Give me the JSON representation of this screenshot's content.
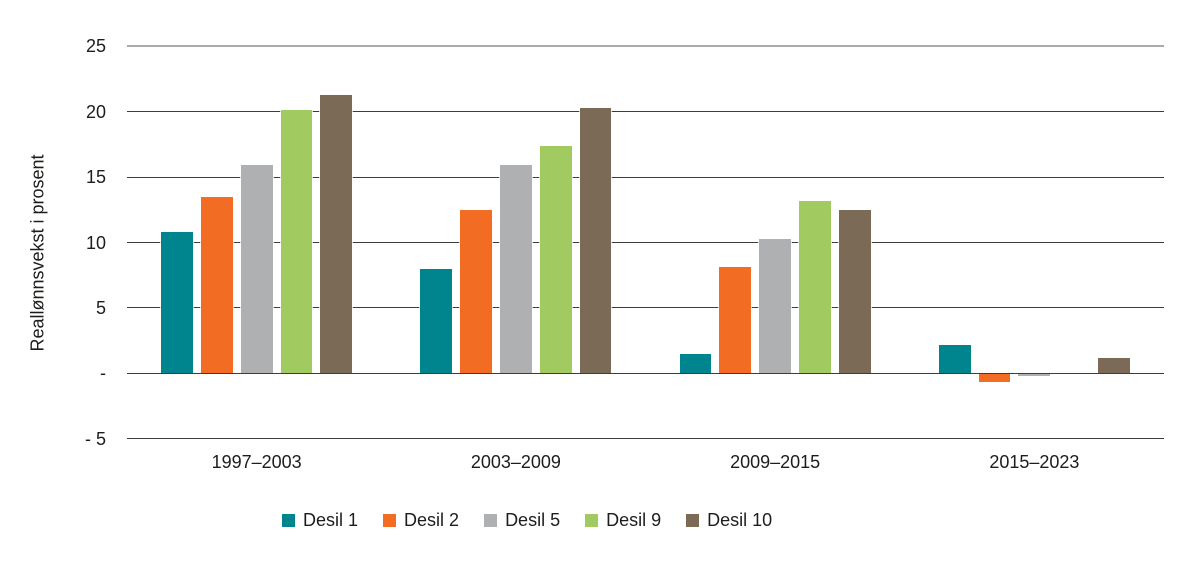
{
  "chart_data": {
    "type": "bar",
    "title": "",
    "ylabel": "Reallønnsvekst i prosent",
    "xlabel": "",
    "categories": [
      "1997–2003",
      "2003–2009",
      "2009–2015",
      "2015–2023"
    ],
    "series": [
      {
        "name": "Desil 1",
        "color": "#00858E",
        "values": [
          10.8,
          8.0,
          1.5,
          2.2
        ]
      },
      {
        "name": "Desil 2",
        "color": "#F26C23",
        "values": [
          13.5,
          12.5,
          8.1,
          -0.6
        ]
      },
      {
        "name": "Desil 5",
        "color": "#AFB0B1",
        "values": [
          15.9,
          15.9,
          10.3,
          -0.2
        ]
      },
      {
        "name": "Desil 9",
        "color": "#A1CA61",
        "values": [
          20.1,
          17.4,
          13.2,
          0
        ]
      },
      {
        "name": "Desil 10",
        "color": "#7A6A56",
        "values": [
          21.3,
          20.3,
          12.5,
          1.2
        ]
      }
    ],
    "ylim": [
      -5,
      25
    ],
    "yticks": [
      {
        "value": 25,
        "label": "25"
      },
      {
        "value": 20,
        "label": "20"
      },
      {
        "value": 15,
        "label": "15"
      },
      {
        "value": 10,
        "label": "10"
      },
      {
        "value": 5,
        "label": "5"
      },
      {
        "value": 0,
        "label": "-"
      },
      {
        "value": -5,
        "label": "- 5"
      }
    ],
    "grid": true,
    "legend_position": "bottom"
  },
  "colors": {
    "background": "#FFFFFF",
    "gridline": "#3C3C3B",
    "top_gridline": "#ABABAB",
    "text": "#1D1D1B"
  }
}
